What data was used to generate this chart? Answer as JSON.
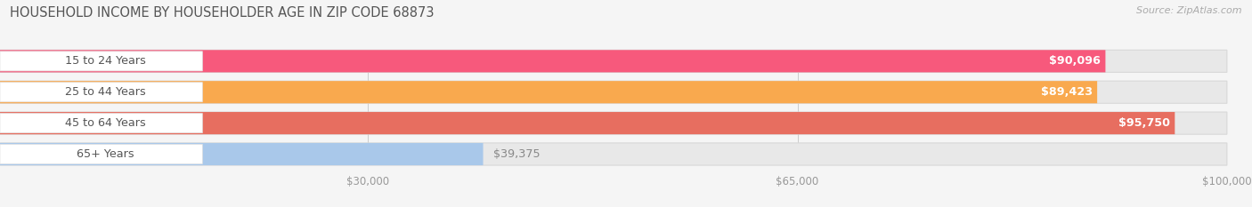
{
  "title": "HOUSEHOLD INCOME BY HOUSEHOLDER AGE IN ZIP CODE 68873",
  "source": "Source: ZipAtlas.com",
  "categories": [
    "15 to 24 Years",
    "25 to 44 Years",
    "45 to 64 Years",
    "65+ Years"
  ],
  "values": [
    90096,
    89423,
    95750,
    39375
  ],
  "bar_colors": [
    "#F7597C",
    "#F9A94E",
    "#E76E60",
    "#A9C8EA"
  ],
  "value_labels": [
    "$90,096",
    "$89,423",
    "$95,750",
    "$39,375"
  ],
  "value_text_colors": [
    "white",
    "white",
    "white",
    "#888888"
  ],
  "value_inside": [
    true,
    true,
    true,
    false
  ],
  "tick_labels": [
    "$30,000",
    "$65,000",
    "$100,000"
  ],
  "tick_values": [
    30000,
    65000,
    100000
  ],
  "xmax": 100000,
  "bg_color": "#f5f5f5",
  "bar_bg_color": "#e8e8e8",
  "bar_bg_border": "#d8d8d8",
  "figsize": [
    14.06,
    2.33
  ],
  "dpi": 100
}
